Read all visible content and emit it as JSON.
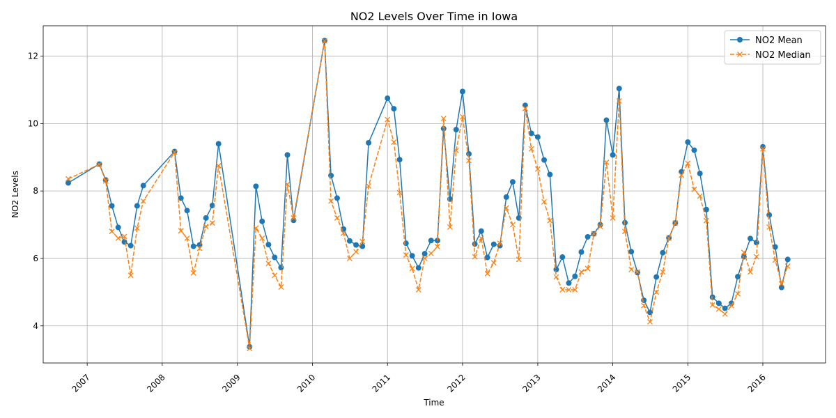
{
  "chart_data": {
    "type": "line",
    "title": "NO2 Levels Over Time in Iowa",
    "xlabel": "Time",
    "ylabel": "NO2 Levels",
    "ylim": [
      2.9,
      12.9
    ],
    "xlim": [
      "2006-06-01",
      "2016-11-01"
    ],
    "y_ticks": [
      "4",
      "6",
      "8",
      "10",
      "12"
    ],
    "x_ticks": [
      "2007",
      "2008",
      "2009",
      "2010",
      "2011",
      "2012",
      "2013",
      "2014",
      "2015",
      "2016"
    ],
    "grid": true,
    "legend_position": "top-right",
    "series": [
      {
        "name": "NO2 Mean",
        "color": "#1f77b4",
        "line_style": "solid",
        "marker": "circle",
        "points": [
          [
            "2006-10-01",
            8.24
          ],
          [
            "2007-03-01",
            8.8
          ],
          [
            "2007-04-01",
            8.33
          ],
          [
            "2007-05-01",
            7.56
          ],
          [
            "2007-06-01",
            6.92
          ],
          [
            "2007-07-01",
            6.49
          ],
          [
            "2007-08-01",
            6.38
          ],
          [
            "2007-09-01",
            7.56
          ],
          [
            "2007-10-01",
            8.16
          ],
          [
            "2008-03-01",
            9.17
          ],
          [
            "2008-04-01",
            7.79
          ],
          [
            "2008-05-01",
            7.42
          ],
          [
            "2008-06-01",
            6.36
          ],
          [
            "2008-07-01",
            6.4
          ],
          [
            "2008-08-01",
            7.2
          ],
          [
            "2008-09-01",
            7.57
          ],
          [
            "2008-10-01",
            9.4
          ],
          [
            "2009-03-01",
            3.38
          ],
          [
            "2009-04-01",
            8.14
          ],
          [
            "2009-05-01",
            7.1
          ],
          [
            "2009-06-01",
            6.41
          ],
          [
            "2009-07-01",
            6.03
          ],
          [
            "2009-08-01",
            5.73
          ],
          [
            "2009-09-01",
            9.07
          ],
          [
            "2009-10-01",
            7.13
          ],
          [
            "2010-03-01",
            12.46
          ],
          [
            "2010-04-01",
            8.46
          ],
          [
            "2010-05-01",
            7.79
          ],
          [
            "2010-06-01",
            6.87
          ],
          [
            "2010-07-01",
            6.52
          ],
          [
            "2010-08-01",
            6.4
          ],
          [
            "2010-09-01",
            6.36
          ],
          [
            "2010-10-01",
            9.43
          ],
          [
            "2011-01-01",
            10.75
          ],
          [
            "2011-02-01",
            10.44
          ],
          [
            "2011-03-01",
            8.93
          ],
          [
            "2011-04-01",
            6.45
          ],
          [
            "2011-05-01",
            6.08
          ],
          [
            "2011-06-01",
            5.72
          ],
          [
            "2011-07-01",
            6.14
          ],
          [
            "2011-08-01",
            6.53
          ],
          [
            "2011-09-01",
            6.53
          ],
          [
            "2011-10-01",
            9.85
          ],
          [
            "2011-11-01",
            7.76
          ],
          [
            "2011-12-01",
            9.82
          ],
          [
            "2012-01-01",
            10.95
          ],
          [
            "2012-02-01",
            9.1
          ],
          [
            "2012-03-01",
            6.43
          ],
          [
            "2012-04-01",
            6.81
          ],
          [
            "2012-05-01",
            6.03
          ],
          [
            "2012-06-01",
            6.42
          ],
          [
            "2012-07-01",
            6.38
          ],
          [
            "2012-08-01",
            7.82
          ],
          [
            "2012-09-01",
            8.27
          ],
          [
            "2012-10-01",
            7.2
          ],
          [
            "2012-11-01",
            10.54
          ],
          [
            "2012-12-01",
            9.71
          ],
          [
            "2013-01-01",
            9.6
          ],
          [
            "2013-02-01",
            8.92
          ],
          [
            "2013-03-01",
            8.49
          ],
          [
            "2013-04-01",
            5.67
          ],
          [
            "2013-05-01",
            6.04
          ],
          [
            "2013-06-01",
            5.27
          ],
          [
            "2013-07-01",
            5.47
          ],
          [
            "2013-08-01",
            6.19
          ],
          [
            "2013-09-01",
            6.64
          ],
          [
            "2013-10-01",
            6.73
          ],
          [
            "2013-11-01",
            7.0
          ],
          [
            "2013-12-01",
            10.1
          ],
          [
            "2014-01-01",
            9.07
          ],
          [
            "2014-02-01",
            11.04
          ],
          [
            "2014-03-01",
            7.06
          ],
          [
            "2014-04-01",
            6.2
          ],
          [
            "2014-05-01",
            5.58
          ],
          [
            "2014-06-01",
            4.76
          ],
          [
            "2014-07-01",
            4.4
          ],
          [
            "2014-08-01",
            5.45
          ],
          [
            "2014-09-01",
            6.17
          ],
          [
            "2014-10-01",
            6.61
          ],
          [
            "2014-11-01",
            7.05
          ],
          [
            "2014-12-01",
            8.57
          ],
          [
            "2015-01-01",
            9.45
          ],
          [
            "2015-02-01",
            9.21
          ],
          [
            "2015-03-01",
            8.52
          ],
          [
            "2015-04-01",
            7.45
          ],
          [
            "2015-05-01",
            4.85
          ],
          [
            "2015-06-01",
            4.67
          ],
          [
            "2015-07-01",
            4.52
          ],
          [
            "2015-08-01",
            4.67
          ],
          [
            "2015-09-01",
            5.46
          ],
          [
            "2015-10-01",
            6.05
          ],
          [
            "2015-11-01",
            6.59
          ],
          [
            "2015-12-01",
            6.47
          ],
          [
            "2016-01-01",
            9.31
          ],
          [
            "2016-02-01",
            7.29
          ],
          [
            "2016-03-01",
            6.34
          ],
          [
            "2016-04-01",
            5.14
          ],
          [
            "2016-05-01",
            5.97
          ]
        ]
      },
      {
        "name": "NO2 Median",
        "color": "#ff7f0e",
        "line_style": "dashed",
        "marker": "x",
        "points": [
          [
            "2006-10-01",
            8.36
          ],
          [
            "2007-03-01",
            8.79
          ],
          [
            "2007-04-01",
            8.3
          ],
          [
            "2007-05-01",
            6.8
          ],
          [
            "2007-06-01",
            6.6
          ],
          [
            "2007-07-01",
            6.65
          ],
          [
            "2007-08-01",
            5.5
          ],
          [
            "2007-09-01",
            6.9
          ],
          [
            "2007-10-01",
            7.7
          ],
          [
            "2008-03-01",
            9.15
          ],
          [
            "2008-04-01",
            6.82
          ],
          [
            "2008-05-01",
            6.6
          ],
          [
            "2008-06-01",
            5.57
          ],
          [
            "2008-07-01",
            6.3
          ],
          [
            "2008-08-01",
            6.95
          ],
          [
            "2008-09-01",
            7.05
          ],
          [
            "2008-10-01",
            8.75
          ],
          [
            "2009-03-01",
            3.33
          ],
          [
            "2009-04-01",
            6.9
          ],
          [
            "2009-05-01",
            6.6
          ],
          [
            "2009-06-01",
            5.85
          ],
          [
            "2009-07-01",
            5.5
          ],
          [
            "2009-08-01",
            5.15
          ],
          [
            "2009-09-01",
            8.2
          ],
          [
            "2009-10-01",
            7.2
          ],
          [
            "2010-03-01",
            12.45
          ],
          [
            "2010-04-01",
            7.7
          ],
          [
            "2010-05-01",
            7.2
          ],
          [
            "2010-06-01",
            6.75
          ],
          [
            "2010-07-01",
            6.0
          ],
          [
            "2010-08-01",
            6.2
          ],
          [
            "2010-09-01",
            6.5
          ],
          [
            "2010-10-01",
            8.15
          ],
          [
            "2011-01-01",
            10.12
          ],
          [
            "2011-02-01",
            9.45
          ],
          [
            "2011-03-01",
            7.95
          ],
          [
            "2011-04-01",
            6.1
          ],
          [
            "2011-05-01",
            5.7
          ],
          [
            "2011-06-01",
            5.07
          ],
          [
            "2011-07-01",
            6.0
          ],
          [
            "2011-08-01",
            6.15
          ],
          [
            "2011-09-01",
            6.35
          ],
          [
            "2011-10-01",
            10.15
          ],
          [
            "2011-11-01",
            6.93
          ],
          [
            "2011-12-01",
            9.2
          ],
          [
            "2012-01-01",
            10.2
          ],
          [
            "2012-02-01",
            8.9
          ],
          [
            "2012-03-01",
            6.05
          ],
          [
            "2012-04-01",
            6.6
          ],
          [
            "2012-05-01",
            5.55
          ],
          [
            "2012-06-01",
            5.87
          ],
          [
            "2012-07-01",
            6.45
          ],
          [
            "2012-08-01",
            7.5
          ],
          [
            "2012-09-01",
            7.0
          ],
          [
            "2012-10-01",
            5.97
          ],
          [
            "2012-11-01",
            10.45
          ],
          [
            "2012-12-01",
            9.25
          ],
          [
            "2013-01-01",
            8.65
          ],
          [
            "2013-02-01",
            7.68
          ],
          [
            "2013-03-01",
            7.12
          ],
          [
            "2013-04-01",
            5.45
          ],
          [
            "2013-05-01",
            5.07
          ],
          [
            "2013-06-01",
            5.07
          ],
          [
            "2013-07-01",
            5.07
          ],
          [
            "2013-08-01",
            5.6
          ],
          [
            "2013-09-01",
            5.7
          ],
          [
            "2013-10-01",
            6.73
          ],
          [
            "2013-11-01",
            6.95
          ],
          [
            "2013-12-01",
            8.85
          ],
          [
            "2014-01-01",
            7.2
          ],
          [
            "2014-02-01",
            10.67
          ],
          [
            "2014-03-01",
            6.8
          ],
          [
            "2014-04-01",
            5.67
          ],
          [
            "2014-05-01",
            5.6
          ],
          [
            "2014-06-01",
            4.6
          ],
          [
            "2014-07-01",
            4.12
          ],
          [
            "2014-08-01",
            5.0
          ],
          [
            "2014-09-01",
            5.6
          ],
          [
            "2014-10-01",
            6.6
          ],
          [
            "2014-11-01",
            7.05
          ],
          [
            "2014-12-01",
            8.47
          ],
          [
            "2015-01-01",
            8.82
          ],
          [
            "2015-02-01",
            8.05
          ],
          [
            "2015-03-01",
            7.85
          ],
          [
            "2015-04-01",
            7.12
          ],
          [
            "2015-05-01",
            4.62
          ],
          [
            "2015-06-01",
            4.5
          ],
          [
            "2015-07-01",
            4.35
          ],
          [
            "2015-08-01",
            4.6
          ],
          [
            "2015-09-01",
            4.95
          ],
          [
            "2015-10-01",
            6.18
          ],
          [
            "2015-11-01",
            5.6
          ],
          [
            "2015-12-01",
            6.05
          ],
          [
            "2016-01-01",
            9.25
          ],
          [
            "2016-02-01",
            6.93
          ],
          [
            "2016-03-01",
            5.95
          ],
          [
            "2016-04-01",
            5.25
          ],
          [
            "2016-05-01",
            5.77
          ]
        ]
      }
    ]
  }
}
